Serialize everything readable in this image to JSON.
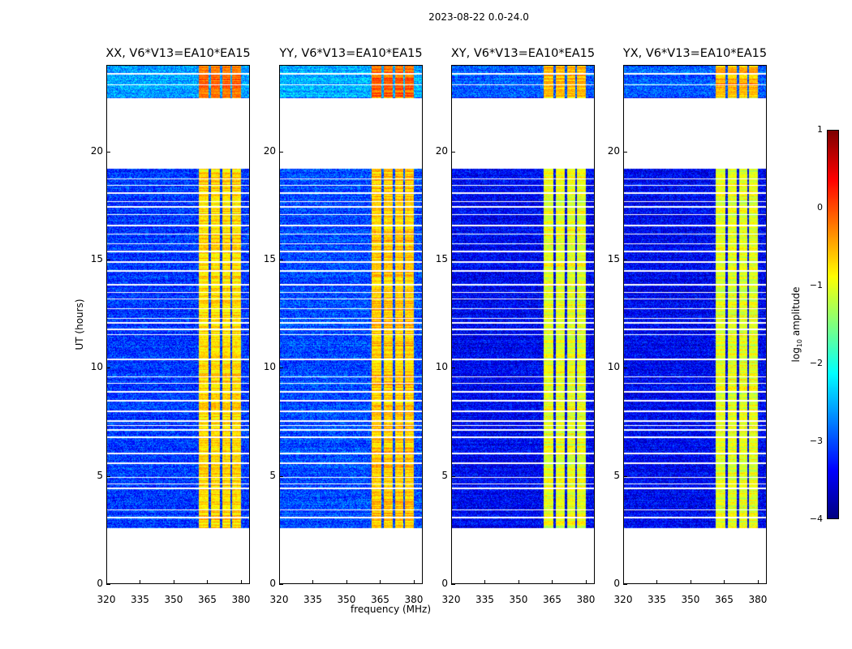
{
  "chart_data": {
    "type": "heatmap",
    "suptitle": "2023-08-22 0.0-24.0",
    "xlabel": "frequency (MHz)",
    "ylabel": "UT (hours)",
    "xlim": [
      320,
      384
    ],
    "ylim": [
      0,
      24
    ],
    "xticks": [
      "320",
      "335",
      "350",
      "365",
      "380"
    ],
    "xtick_values": [
      320,
      335,
      350,
      365,
      380
    ],
    "yticks": [
      "0",
      "5",
      "10",
      "15",
      "20"
    ],
    "ytick_values": [
      0,
      5,
      10,
      15,
      20
    ],
    "colorbar": {
      "label_main": "log",
      "label_sub": "10",
      "label_rest": " amplitude",
      "range": [
        -4,
        1
      ],
      "ticks": [
        "1",
        "0",
        "−1",
        "−2",
        "−3",
        "−4"
      ],
      "tick_values": [
        1,
        0,
        -1,
        -2,
        -3,
        -4
      ],
      "colormap": "jet"
    },
    "time_coverage_hours": [
      [
        2.6,
        19.2
      ],
      [
        22.5,
        24.0
      ]
    ],
    "blank_rows_hours": [
      3.1,
      3.45,
      4.45,
      4.65,
      4.95,
      5.6,
      6.05,
      6.8,
      7.15,
      7.35,
      7.55,
      8.0,
      8.5,
      8.9,
      9.3,
      9.6,
      10.4,
      11.55,
      11.8,
      12.1,
      12.3,
      12.75,
      13.2,
      13.5,
      13.85,
      14.5,
      14.9,
      15.4,
      15.75,
      16.2,
      16.6,
      17.1,
      17.45,
      17.7,
      18.1,
      18.45,
      18.75,
      23.1,
      23.6
    ],
    "bright_subbands_mhz": [
      [
        361,
        365.5
      ],
      [
        366.5,
        370.5
      ],
      [
        371.5,
        375
      ],
      [
        376,
        380
      ]
    ],
    "panels": [
      {
        "title": "XX, V6*V13=EA10*EA15",
        "background_log_amp": -3.1,
        "subband_log_amp": -0.7
      },
      {
        "title": "YY, V6*V13=EA10*EA15",
        "background_log_amp": -3.0,
        "subband_log_amp": -0.6
      },
      {
        "title": "XY, V6*V13=EA10*EA15",
        "background_log_amp": -3.4,
        "subband_log_amp": -1.0
      },
      {
        "title": "YX, V6*V13=EA10*EA15",
        "background_log_amp": -3.4,
        "subband_log_amp": -1.0
      }
    ]
  }
}
